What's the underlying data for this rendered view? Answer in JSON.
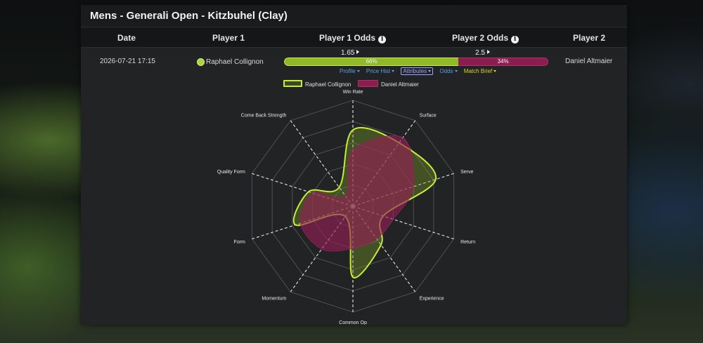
{
  "title": "Mens - Generali Open - Kitzbuhel (Clay)",
  "columns": {
    "date": "Date",
    "player1": "Player 1",
    "player1_odds": "Player 1 Odds",
    "player2_odds": "Player 2 Odds",
    "player2": "Player 2"
  },
  "match": {
    "date": "2026-07-21 17:15",
    "player1": "Raphael Collignon",
    "player2": "Daniel Altmaier",
    "player1_odds": "1.65",
    "player2_odds": "2.5",
    "player1_prob_label": "66%",
    "player2_prob_label": "34%",
    "player1_prob": 0.66,
    "player2_prob": 0.34
  },
  "menu": [
    {
      "label": "Profile",
      "color": "#5aa0e8"
    },
    {
      "label": "Price Hist",
      "color": "#5aa0e8"
    },
    {
      "label": "Attributes",
      "color": "#9aa6ff"
    },
    {
      "label": "Odds",
      "color": "#5aa0e8"
    },
    {
      "label": "Match Brief",
      "color": "#e0d030"
    }
  ],
  "legend": {
    "series1": "Raphael Collignon",
    "series2": "Daniel Altmaier"
  },
  "colors": {
    "player1": "#c8ea3a",
    "player2": "#a02060",
    "panel": "#222325"
  },
  "icons": {
    "info": "info-circle-icon",
    "odds_arrow": "triangle-right-icon",
    "menu_caret": "caret-down-icon",
    "player_indicator": "green-dot-icon"
  },
  "chart_data": {
    "type": "radar",
    "axes": [
      "Win Rate",
      "Surface",
      "Serve",
      "Return",
      "Experience",
      "Common Op",
      "Momentum",
      "Form",
      "Quality Form",
      "Come Back Strength"
    ],
    "series": [
      {
        "name": "Raphael Collignon",
        "values": [
          0.72,
          0.74,
          0.82,
          0.3,
          0.45,
          0.67,
          0.12,
          0.57,
          0.44,
          0.22
        ]
      },
      {
        "name": "Daniel Altmaier",
        "values": [
          0.53,
          0.8,
          0.6,
          0.4,
          0.38,
          0.4,
          0.5,
          0.52,
          0.4,
          0.12
        ]
      }
    ],
    "range": [
      0,
      1
    ],
    "grid": true
  }
}
